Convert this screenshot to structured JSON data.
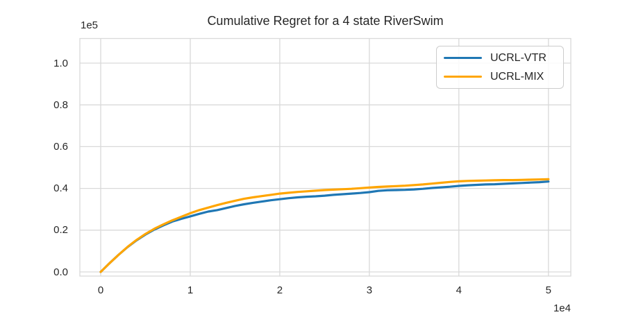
{
  "figure": {
    "background": "#ffffff",
    "grid_color": "#d9d9d9",
    "text_color": "#262626",
    "legend_border_color": "#cccccc"
  },
  "chart_data": {
    "type": "line",
    "title": "Cumulative Regret for a 4 state RiverSwim",
    "xlabel": "",
    "ylabel": "",
    "x_offset_text": "1e4",
    "y_offset_text": "1e5",
    "x_scale_factor": 10000,
    "y_scale_factor": 100000,
    "xlim": [
      -0.233,
      5.25
    ],
    "ylim": [
      -0.02,
      1.118
    ],
    "x_ticks": [
      0,
      1,
      2,
      3,
      4,
      5
    ],
    "x_tick_labels": [
      "0",
      "1",
      "2",
      "3",
      "4",
      "5"
    ],
    "y_ticks": [
      0.0,
      0.2,
      0.4,
      0.6,
      0.8,
      1.0
    ],
    "y_tick_labels": [
      "0.0",
      "0.2",
      "0.4",
      "0.6",
      "0.8",
      "1.0"
    ],
    "grid": true,
    "legend_position": "upper right",
    "line_width": 3.2,
    "series": [
      {
        "name": "UCRL-VTR",
        "color": "#1f77b4",
        "x": [
          0,
          0.1,
          0.2,
          0.3,
          0.4,
          0.5,
          0.6,
          0.7,
          0.8,
          0.9,
          1.0,
          1.1,
          1.2,
          1.3,
          1.4,
          1.5,
          1.6,
          1.7,
          1.8,
          1.9,
          2.0,
          2.1,
          2.2,
          2.3,
          2.4,
          2.5,
          2.6,
          2.7,
          2.8,
          2.9,
          3.0,
          3.1,
          3.2,
          3.3,
          3.4,
          3.5,
          3.6,
          3.7,
          3.8,
          3.9,
          4.0,
          4.1,
          4.2,
          4.3,
          4.4,
          4.5,
          4.6,
          4.7,
          4.8,
          4.9,
          5.0
        ],
        "y": [
          0,
          0.042,
          0.082,
          0.119,
          0.151,
          0.179,
          0.203,
          0.223,
          0.241,
          0.254,
          0.266,
          0.278,
          0.289,
          0.296,
          0.306,
          0.316,
          0.324,
          0.331,
          0.337,
          0.343,
          0.348,
          0.353,
          0.357,
          0.36,
          0.362,
          0.365,
          0.369,
          0.372,
          0.375,
          0.378,
          0.382,
          0.388,
          0.391,
          0.392,
          0.393,
          0.395,
          0.398,
          0.402,
          0.405,
          0.408,
          0.412,
          0.415,
          0.417,
          0.419,
          0.42,
          0.422,
          0.424,
          0.426,
          0.428,
          0.43,
          0.433
        ]
      },
      {
        "name": "UCRL-MIX",
        "color": "#ffa500",
        "x": [
          0,
          0.1,
          0.2,
          0.3,
          0.4,
          0.5,
          0.6,
          0.7,
          0.8,
          0.9,
          1.0,
          1.1,
          1.2,
          1.3,
          1.4,
          1.5,
          1.6,
          1.7,
          1.8,
          1.9,
          2.0,
          2.1,
          2.2,
          2.3,
          2.4,
          2.5,
          2.6,
          2.7,
          2.8,
          2.9,
          3.0,
          3.1,
          3.2,
          3.3,
          3.4,
          3.5,
          3.6,
          3.7,
          3.8,
          3.9,
          4.0,
          4.1,
          4.2,
          4.3,
          4.4,
          4.5,
          4.6,
          4.7,
          4.8,
          4.9,
          5.0
        ],
        "y": [
          0,
          0.042,
          0.082,
          0.12,
          0.153,
          0.182,
          0.207,
          0.228,
          0.247,
          0.264,
          0.281,
          0.296,
          0.308,
          0.32,
          0.331,
          0.341,
          0.35,
          0.357,
          0.363,
          0.369,
          0.375,
          0.379,
          0.383,
          0.386,
          0.389,
          0.392,
          0.394,
          0.396,
          0.398,
          0.401,
          0.404,
          0.407,
          0.409,
          0.411,
          0.413,
          0.416,
          0.419,
          0.423,
          0.427,
          0.431,
          0.434,
          0.436,
          0.437,
          0.438,
          0.439,
          0.44,
          0.44,
          0.441,
          0.442,
          0.443,
          0.444
        ]
      }
    ]
  }
}
